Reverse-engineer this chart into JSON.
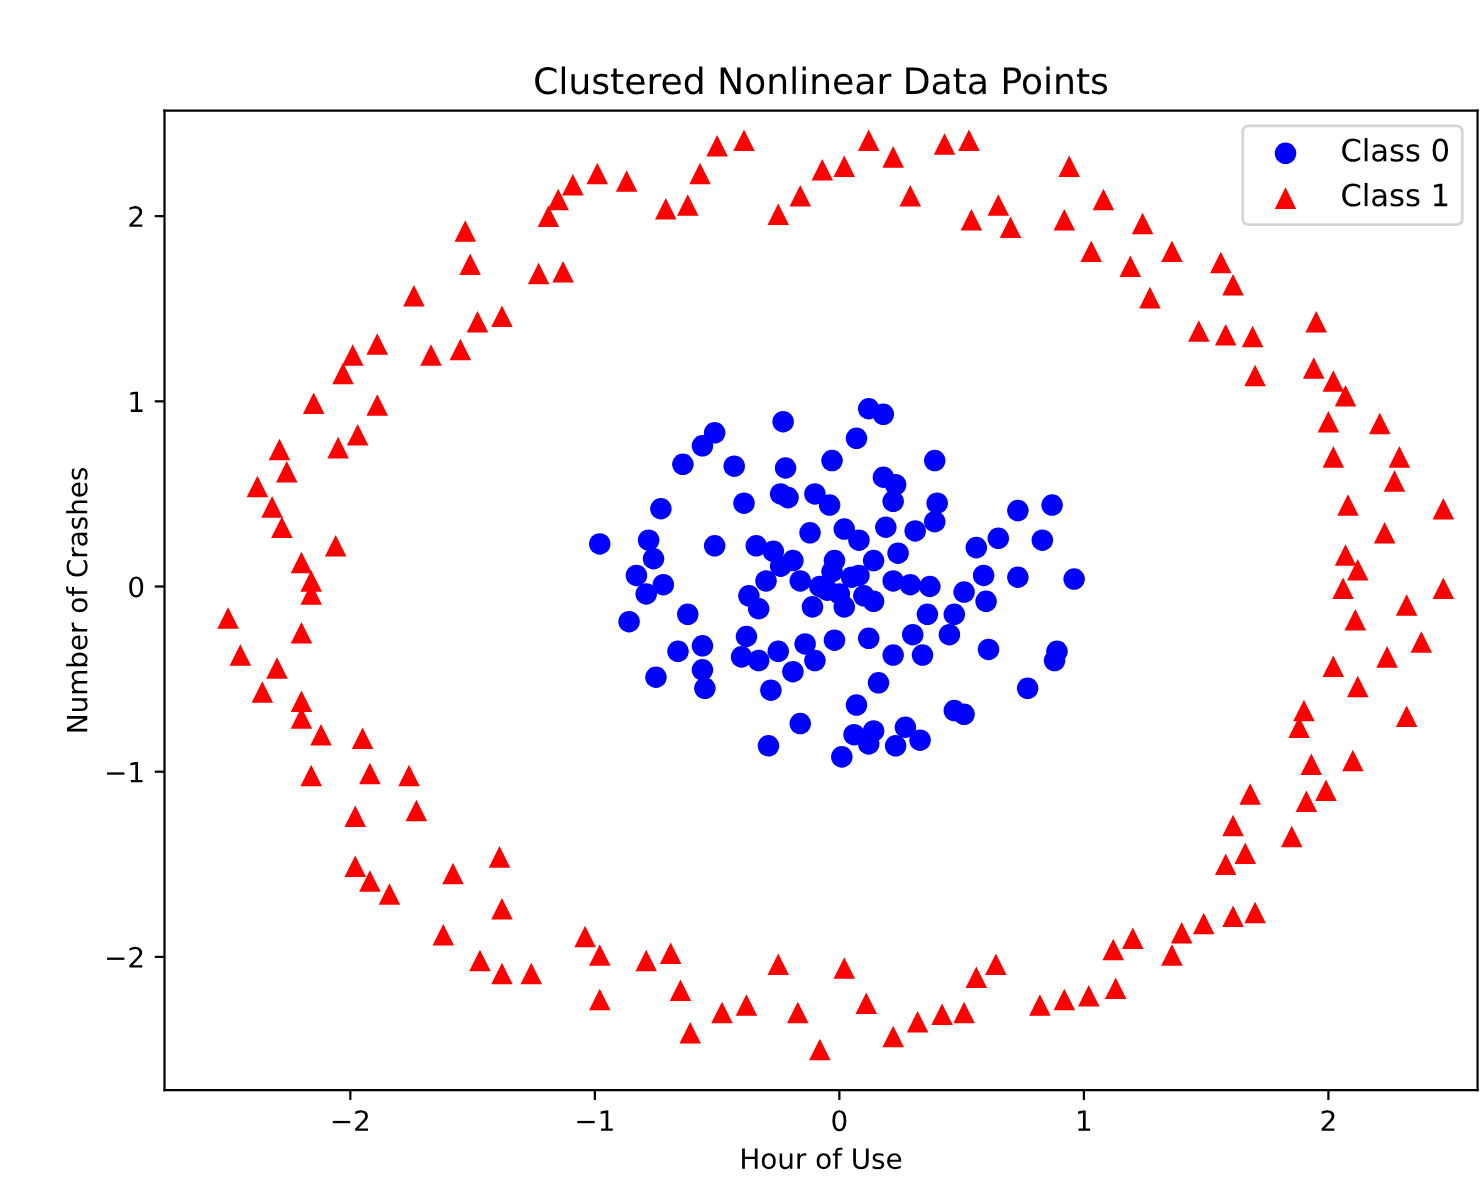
{
  "chart_data": {
    "type": "scatter",
    "title": "Clustered Nonlinear Data Points",
    "xlabel": "Hour of Use",
    "ylabel": "Number of Crashes",
    "xlim": [
      -2.76,
      2.61
    ],
    "ylim": [
      -2.72,
      2.57
    ],
    "xticks": [
      {
        "value": -2,
        "label": "−2"
      },
      {
        "value": -1,
        "label": "−1"
      },
      0,
      1,
      2
    ],
    "yticks": [
      {
        "value": -2,
        "label": "−2"
      },
      {
        "value": -1,
        "label": "−1"
      },
      0,
      1,
      2
    ],
    "grid": false,
    "legend": "top right",
    "series": [
      {
        "name": "Class 0",
        "color": "#0000ff",
        "marker": "circle",
        "x": [
          -0.98,
          -0.78,
          -0.76,
          -0.83,
          -0.79,
          -0.72,
          -0.86,
          -0.64,
          -0.56,
          -0.51,
          -0.43,
          -0.73,
          -0.51,
          -0.39,
          -0.23,
          -0.22,
          -0.24,
          -0.21,
          -0.03,
          0.07,
          0.12,
          0.18,
          -0.1,
          -0.04,
          -0.12,
          0.02,
          -0.34,
          -0.27,
          0.18,
          0.23,
          0.22,
          0.39,
          0.4,
          0.39,
          0.31,
          0.24,
          0.73,
          0.87,
          0.65,
          0.83,
          0.56,
          0.59,
          0.73,
          0.96,
          0.51,
          0.6,
          0.47,
          0.45,
          0.61,
          0.89,
          0.88,
          0.77,
          0.47,
          0.51,
          0.27,
          0.33,
          0.14,
          0.06,
          0.12,
          0.23,
          0.01,
          0.07,
          0.16,
          -0.16,
          -0.29,
          -0.28,
          -0.19,
          -0.1,
          -0.38,
          -0.4,
          -0.33,
          -0.25,
          -0.02,
          0.12,
          0.22,
          0.34,
          0.3,
          0.36,
          0.37,
          0.29,
          -0.62,
          -0.66,
          -0.56,
          -0.75,
          -0.55,
          -0.56,
          -0.37,
          -0.33,
          -0.14,
          -0.24,
          -0.16,
          -0.08,
          0.0,
          0.08,
          0.14,
          -0.02,
          -0.19,
          0.02,
          -0.11,
          0.14,
          0.22,
          -0.3,
          0.08,
          0.19,
          0.05,
          -0.05,
          0.1,
          -0.03
        ],
        "values": [
          0.23,
          0.25,
          0.15,
          0.06,
          -0.04,
          0.01,
          -0.19,
          0.66,
          0.76,
          0.83,
          0.65,
          0.42,
          0.22,
          0.45,
          0.89,
          0.64,
          0.5,
          0.48,
          0.68,
          0.8,
          0.96,
          0.93,
          0.5,
          0.44,
          0.29,
          0.31,
          0.22,
          0.19,
          0.59,
          0.55,
          0.46,
          0.68,
          0.45,
          0.35,
          0.3,
          0.18,
          0.41,
          0.44,
          0.26,
          0.25,
          0.21,
          0.06,
          0.05,
          0.04,
          -0.03,
          -0.08,
          -0.15,
          -0.26,
          -0.34,
          -0.35,
          -0.4,
          -0.55,
          -0.67,
          -0.69,
          -0.76,
          -0.83,
          -0.78,
          -0.8,
          -0.85,
          -0.86,
          -0.92,
          -0.64,
          -0.52,
          -0.74,
          -0.86,
          -0.56,
          -0.46,
          -0.4,
          -0.27,
          -0.38,
          -0.4,
          -0.35,
          -0.29,
          -0.28,
          -0.37,
          -0.37,
          -0.26,
          -0.15,
          0.0,
          0.01,
          -0.15,
          -0.35,
          -0.32,
          -0.49,
          -0.55,
          -0.45,
          -0.05,
          -0.12,
          -0.31,
          0.11,
          0.03,
          0.0,
          -0.04,
          0.06,
          0.14,
          0.14,
          0.14,
          -0.11,
          -0.11,
          -0.08,
          0.03,
          0.03,
          0.25,
          0.32,
          0.05,
          -0.02,
          -0.05,
          0.08
        ]
      },
      {
        "name": "Class 1",
        "color": "#ff0000",
        "marker": "triangle",
        "x": [
          -0.39,
          -0.5,
          -0.57,
          -0.62,
          -0.71,
          -0.87,
          -0.99,
          -1.09,
          -1.15,
          -1.19,
          -1.53,
          -1.51,
          -1.23,
          -1.13,
          -1.38,
          -1.48,
          -1.74,
          -1.89,
          -1.99,
          -2.03,
          -1.67,
          -1.55,
          -2.15,
          -1.89,
          -1.97,
          -2.05,
          -2.29,
          -2.26,
          -2.38,
          -2.32,
          -2.28,
          -2.06,
          -2.2,
          -2.16,
          -0.25,
          -0.16,
          -0.07,
          0.12,
          0.22,
          0.02,
          0.43,
          0.53,
          0.29,
          0.54,
          0.65,
          0.7,
          0.94,
          1.08,
          0.92,
          1.24,
          1.03,
          1.19,
          1.36,
          1.27,
          1.56,
          1.61,
          1.47,
          1.58,
          1.69,
          1.7,
          1.95,
          1.94,
          2.02,
          2.07,
          2.0,
          2.21,
          2.02,
          2.29,
          2.27,
          2.08,
          2.47,
          2.23,
          2.07,
          2.12,
          2.47,
          2.06,
          2.32,
          2.11,
          2.38,
          2.24,
          2.02,
          2.12,
          2.32,
          1.9,
          1.88,
          1.93,
          2.1,
          1.99,
          1.91,
          1.68,
          1.61,
          1.85,
          1.66,
          1.58,
          1.7,
          1.61,
          1.49,
          1.4,
          1.36,
          1.2,
          1.12,
          1.13,
          1.02,
          0.92,
          0.82,
          0.64,
          0.56,
          0.51,
          0.42,
          0.32,
          0.22,
          0.11,
          0.02,
          -2.5,
          -2.45,
          -2.3,
          -2.36,
          -2.2,
          -2.16,
          -2.2,
          -2.2,
          -2.12,
          -2.16,
          -1.95,
          -1.92,
          -1.76,
          -1.73,
          -1.98,
          -1.98,
          -1.92,
          -1.84,
          -1.58,
          -1.39,
          -1.38,
          -1.62,
          -1.47,
          -1.38,
          -1.26,
          -1.04,
          -0.98,
          -0.98,
          -0.79,
          -0.69,
          -0.65,
          -0.61,
          -0.48,
          -0.38,
          -0.25,
          -0.17,
          -0.08
        ],
        "values": [
          2.41,
          2.38,
          2.23,
          2.06,
          2.04,
          2.19,
          2.23,
          2.17,
          2.09,
          2.0,
          1.92,
          1.74,
          1.69,
          1.7,
          1.46,
          1.43,
          1.57,
          1.31,
          1.25,
          1.15,
          1.25,
          1.28,
          0.99,
          0.98,
          0.82,
          0.75,
          0.74,
          0.62,
          0.54,
          0.43,
          0.32,
          0.22,
          0.13,
          0.03,
          2.01,
          2.11,
          2.25,
          2.41,
          2.32,
          2.27,
          2.39,
          2.41,
          2.11,
          1.98,
          2.06,
          1.94,
          2.27,
          2.09,
          1.98,
          1.96,
          1.81,
          1.73,
          1.81,
          1.56,
          1.75,
          1.63,
          1.38,
          1.36,
          1.35,
          1.14,
          1.43,
          1.18,
          1.11,
          1.03,
          0.89,
          0.88,
          0.7,
          0.7,
          0.57,
          0.44,
          0.42,
          0.29,
          0.17,
          0.09,
          -0.01,
          -0.01,
          -0.1,
          -0.18,
          -0.3,
          -0.38,
          -0.43,
          -0.54,
          -0.7,
          -0.67,
          -0.76,
          -0.96,
          -0.94,
          -1.1,
          -1.16,
          -1.12,
          -1.29,
          -1.35,
          -1.44,
          -1.5,
          -1.76,
          -1.78,
          -1.82,
          -1.87,
          -1.99,
          -1.9,
          -1.96,
          -2.17,
          -2.21,
          -2.23,
          -2.26,
          -2.04,
          -2.11,
          -2.3,
          -2.31,
          -2.35,
          -2.43,
          -2.25,
          -2.06,
          -0.17,
          -0.37,
          -0.44,
          -0.57,
          -0.25,
          -0.04,
          -0.62,
          -0.71,
          -0.8,
          -1.02,
          -0.82,
          -1.01,
          -1.02,
          -1.21,
          -1.24,
          -1.51,
          -1.59,
          -1.66,
          -1.55,
          -1.46,
          -1.74,
          -1.88,
          -2.02,
          -2.09,
          -2.09,
          -1.89,
          -1.99,
          -2.23,
          -2.02,
          -1.98,
          -2.18,
          -2.41,
          -2.3,
          -2.26,
          -2.04,
          -2.3,
          -2.5
        ]
      }
    ]
  }
}
